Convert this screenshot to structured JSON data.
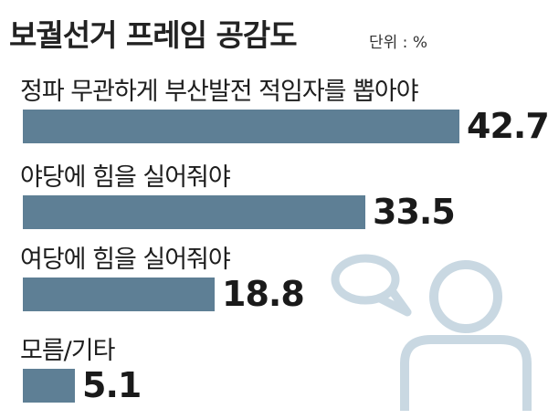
{
  "title": "보궐선거 프레임 공감도",
  "unit_label": "단위 : %",
  "colors": {
    "bar": "#5e7f95",
    "icon": "#c9d8e2"
  },
  "icons": [
    "speech-bubble-icon",
    "person-icon"
  ],
  "chart_data": {
    "type": "bar",
    "orientation": "horizontal",
    "title": "보궐선거 프레임 공감도",
    "unit": "단위 : %",
    "categories": [
      "정파 무관하게 부산발전 적임자를 뽑아야",
      "야당에 힘을 실어줘야",
      "여당에 힘을 실어줘야",
      "모름/기타"
    ],
    "values": [
      42.7,
      33.5,
      18.8,
      5.1
    ],
    "data_labels": [
      "42.7",
      "33.5",
      "18.8",
      "5.1"
    ],
    "xlim": [
      0,
      42.7
    ],
    "grid": false,
    "legend": "none"
  }
}
